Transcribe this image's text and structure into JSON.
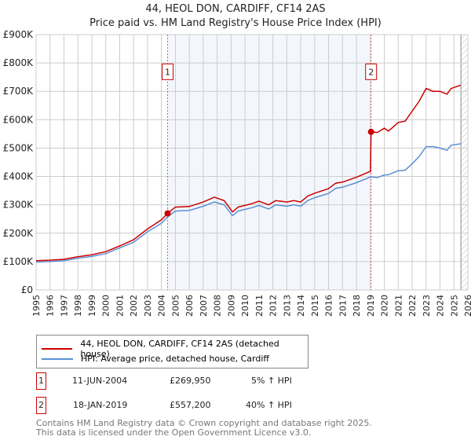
{
  "chart_data": {
    "type": "line",
    "title": "44, HEOL DON, CARDIFF, CF14 2AS",
    "subtitle": "Price paid vs. HM Land Registry's House Price Index (HPI)",
    "xlim": [
      1995,
      2026
    ],
    "ylim": [
      0,
      900000
    ],
    "x_ticks": [
      "1995",
      "1996",
      "1997",
      "1998",
      "1999",
      "2000",
      "2001",
      "2002",
      "2003",
      "2004",
      "2005",
      "2006",
      "2007",
      "2008",
      "2009",
      "2010",
      "2011",
      "2012",
      "2013",
      "2014",
      "2015",
      "2016",
      "2017",
      "2018",
      "2019",
      "2020",
      "2021",
      "2022",
      "2023",
      "2024",
      "2025",
      "2026"
    ],
    "y_ticks": [
      {
        "v": 0,
        "label": "£0"
      },
      {
        "v": 100000,
        "label": "£100K"
      },
      {
        "v": 200000,
        "label": "£200K"
      },
      {
        "v": 300000,
        "label": "£300K"
      },
      {
        "v": 400000,
        "label": "£400K"
      },
      {
        "v": 500000,
        "label": "£500K"
      },
      {
        "v": 600000,
        "label": "£600K"
      },
      {
        "v": 700000,
        "label": "£700K"
      },
      {
        "v": 800000,
        "label": "£800K"
      },
      {
        "v": 900000,
        "label": "£900K"
      }
    ],
    "grid": true,
    "shaded_range": [
      2004.44,
      2019.05
    ],
    "hatched_from": 2025.5,
    "series": [
      {
        "name": "44, HEOL DON, CARDIFF, CF14 2AS (detached house)",
        "color": "#cc0000",
        "x": [
          1995,
          1996,
          1997,
          1998,
          1999,
          2000,
          2001,
          2002,
          2003,
          2004,
          2004.44,
          2005,
          2006,
          2007,
          2007.8,
          2008.5,
          2009.1,
          2009.5,
          2010.5,
          2011,
          2011.7,
          2012.2,
          2013,
          2013.5,
          2014,
          2014.5,
          2015,
          2016,
          2016.5,
          2017,
          2018,
          2019.0,
          2019.05,
          2019.5,
          2020,
          2020.3,
          2021,
          2021.5,
          2022,
          2022.5,
          2023,
          2023.5,
          2024,
          2024.5,
          2024.8,
          2025.5
        ],
        "y": [
          103000,
          105000,
          108000,
          117000,
          124000,
          135000,
          155000,
          177000,
          215000,
          247000,
          269950,
          292000,
          294000,
          310000,
          327000,
          315000,
          275000,
          292000,
          304000,
          313000,
          300000,
          315000,
          310000,
          315000,
          310000,
          331000,
          341000,
          357000,
          376000,
          380000,
          397000,
          418000,
          557200,
          555000,
          570000,
          560000,
          590000,
          595000,
          630000,
          665000,
          710000,
          700000,
          700000,
          690000,
          710000,
          722000
        ]
      },
      {
        "name": "HPI: Average price, detached house, Cardiff",
        "color": "#5b8fd4",
        "x": [
          1995,
          1996,
          1997,
          1998,
          1999,
          2000,
          2001,
          2002,
          2003,
          2004,
          2004.44,
          2005,
          2006,
          2007,
          2007.8,
          2008.5,
          2009.1,
          2009.5,
          2010.5,
          2011,
          2011.7,
          2012.2,
          2013,
          2013.5,
          2014,
          2014.5,
          2015,
          2016,
          2016.5,
          2017,
          2018,
          2019.0,
          2019.05,
          2019.5,
          2020,
          2020.3,
          2021,
          2021.5,
          2022,
          2022.5,
          2023,
          2023.5,
          2024,
          2024.5,
          2024.8,
          2025.5
        ],
        "y": [
          98000,
          100000,
          103000,
          112000,
          118000,
          128000,
          148000,
          168000,
          205000,
          235000,
          257000,
          278000,
          280000,
          295000,
          310000,
          300000,
          262000,
          278000,
          290000,
          298000,
          285000,
          300000,
          295000,
          300000,
          295000,
          315000,
          325000,
          340000,
          358000,
          362000,
          378000,
          398000,
          398000,
          396000,
          405000,
          406000,
          420000,
          422000,
          445000,
          470000,
          505000,
          505000,
          500000,
          492000,
          510000,
          515000
        ]
      }
    ],
    "annotations": [
      {
        "label": "1",
        "x": 2004.44,
        "y": 269950
      },
      {
        "label": "2",
        "x": 2019.05,
        "y": 557200
      }
    ]
  },
  "legend": {
    "red": "44, HEOL DON, CARDIFF, CF14 2AS (detached house)",
    "blue": "HPI: Average price, detached house, Cardiff"
  },
  "transactions": [
    {
      "num": "1",
      "date": "11-JUN-2004",
      "price": "£269,950",
      "hpi": "5% ↑ HPI"
    },
    {
      "num": "2",
      "date": "18-JAN-2019",
      "price": "£557,200",
      "hpi": "40% ↑ HPI"
    }
  ],
  "footer": {
    "line1": "Contains HM Land Registry data © Crown copyright and database right 2025.",
    "line2": "This data is licensed under the Open Government Licence v3.0."
  }
}
